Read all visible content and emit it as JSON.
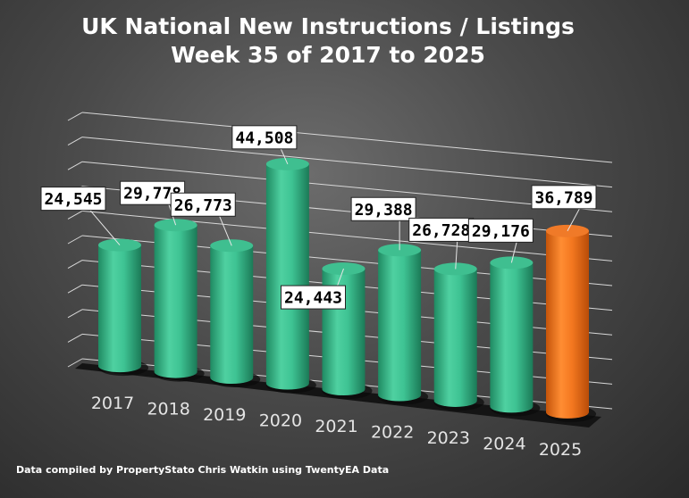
{
  "chart_data": {
    "type": "bar",
    "title": [
      "UK National New Instructions / Listings",
      "Week 35 of 2017 to 2025"
    ],
    "categories": [
      "2017",
      "2018",
      "2019",
      "2020",
      "2021",
      "2022",
      "2023",
      "2024",
      "2025"
    ],
    "values": [
      24545,
      29778,
      26773,
      44508,
      24443,
      29388,
      26728,
      29176,
      36789
    ],
    "value_labels": [
      "24,545",
      "29,778",
      "26,773",
      "44,508",
      "24,443",
      "29,388",
      "26,728",
      "29,176",
      "36,789"
    ],
    "ylim": [
      0,
      50000
    ],
    "grid": true,
    "legend": "none",
    "colors": {
      "default_bar": "#3ec393",
      "highlight_bar": "#f47820",
      "highlight_category": "2025"
    }
  },
  "footer": {
    "source_text": "Data compiled by PropertyStato Chris Watkin using TwentyEA Data"
  }
}
